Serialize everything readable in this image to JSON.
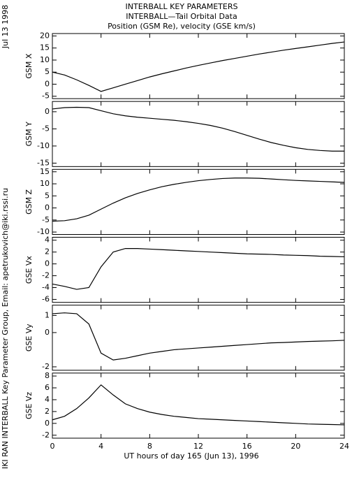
{
  "header": {
    "lines": [
      "INTERBALL KEY PARAMETERS",
      "INTERBALL—Tail Orbital Data",
      "Position (GSM Re), velocity (GSE km/s)"
    ]
  },
  "date": "Jul 13 1998",
  "credit": "IKI RAN INTERBALL Key Parameter Group, Email: apetrukovich@iki.rssi.ru",
  "chart_data": [
    {
      "type": "line",
      "ylabel": "GSM X",
      "color": "#000000",
      "x": [
        0,
        1,
        2,
        3,
        4,
        5,
        6,
        7,
        8,
        9,
        10,
        11,
        12,
        13,
        14,
        15,
        16,
        17,
        18,
        19,
        20,
        21,
        22,
        23,
        24
      ],
      "values": [
        5,
        3.8,
        1.8,
        -0.5,
        -3,
        -1.5,
        0,
        1.5,
        3,
        4.3,
        5.5,
        6.7,
        7.8,
        8.8,
        9.8,
        10.7,
        11.6,
        12.5,
        13.3,
        14.1,
        14.8,
        15.5,
        16.2,
        16.9,
        17.5
      ],
      "xlim": [
        0,
        24
      ],
      "xticks": [
        0,
        4,
        8,
        12,
        16,
        20,
        24
      ],
      "ylim": [
        -6,
        21
      ],
      "yticks": [
        -5,
        0,
        5,
        10,
        15,
        20
      ]
    },
    {
      "type": "line",
      "ylabel": "GSM Y",
      "color": "#000000",
      "x": [
        0,
        1,
        2,
        3,
        4,
        5,
        6,
        7,
        8,
        9,
        10,
        11,
        12,
        13,
        14,
        15,
        16,
        17,
        18,
        19,
        20,
        21,
        22,
        23,
        24
      ],
      "values": [
        0.8,
        1.2,
        1.3,
        1.2,
        0.3,
        -0.6,
        -1.2,
        -1.6,
        -1.9,
        -2.2,
        -2.5,
        -2.9,
        -3.4,
        -4,
        -4.8,
        -5.8,
        -6.9,
        -8,
        -9,
        -9.8,
        -10.5,
        -11,
        -11.3,
        -11.5,
        -11.5
      ],
      "xlim": [
        0,
        24
      ],
      "xticks": [
        0,
        4,
        8,
        12,
        16,
        20,
        24
      ],
      "ylim": [
        -16,
        3
      ],
      "yticks": [
        -15,
        -10,
        -5,
        0
      ]
    },
    {
      "type": "line",
      "ylabel": "GSM Z",
      "color": "#000000",
      "x": [
        0,
        1,
        2,
        3,
        4,
        5,
        6,
        7,
        8,
        9,
        10,
        11,
        12,
        13,
        14,
        15,
        16,
        17,
        18,
        19,
        20,
        21,
        22,
        23,
        24
      ],
      "values": [
        -5.5,
        -5.3,
        -4.5,
        -3,
        -0.5,
        2,
        4.2,
        6,
        7.5,
        8.8,
        9.8,
        10.6,
        11.3,
        11.8,
        12.2,
        12.4,
        12.4,
        12.3,
        12,
        11.7,
        11.4,
        11.2,
        11,
        10.8,
        10.6
      ],
      "xlim": [
        0,
        24
      ],
      "xticks": [
        0,
        4,
        8,
        12,
        16,
        20,
        24
      ],
      "ylim": [
        -11,
        16
      ],
      "yticks": [
        -10,
        -5,
        0,
        5,
        10,
        15
      ]
    },
    {
      "type": "line",
      "ylabel": "GSE Vx",
      "color": "#000000",
      "x": [
        0,
        1,
        2,
        3,
        4,
        5,
        6,
        7,
        8,
        9,
        10,
        11,
        12,
        13,
        14,
        15,
        16,
        17,
        18,
        19,
        20,
        21,
        22,
        23,
        24
      ],
      "values": [
        -3.4,
        -3.8,
        -4.3,
        -4,
        -0.5,
        2,
        2.6,
        2.6,
        2.5,
        2.4,
        2.3,
        2.2,
        2.1,
        2,
        1.9,
        1.8,
        1.7,
        1.65,
        1.6,
        1.5,
        1.45,
        1.4,
        1.3,
        1.25,
        1.2
      ],
      "xlim": [
        0,
        24
      ],
      "xticks": [
        0,
        4,
        8,
        12,
        16,
        20,
        24
      ],
      "ylim": [
        -6.5,
        4.5
      ],
      "yticks": [
        -6,
        -4,
        -2,
        0,
        2,
        4
      ]
    },
    {
      "type": "line",
      "ylabel": "GSE Vy",
      "color": "#000000",
      "x": [
        0,
        1,
        2,
        3,
        4,
        5,
        6,
        7,
        8,
        9,
        10,
        11,
        12,
        13,
        14,
        15,
        16,
        17,
        18,
        19,
        20,
        21,
        22,
        23,
        24
      ],
      "values": [
        1.1,
        1.15,
        1.1,
        0.5,
        -1.2,
        -1.6,
        -1.5,
        -1.35,
        -1.2,
        -1.1,
        -1,
        -0.95,
        -0.9,
        -0.85,
        -0.8,
        -0.75,
        -0.7,
        -0.65,
        -0.6,
        -0.58,
        -0.55,
        -0.52,
        -0.5,
        -0.48,
        -0.45
      ],
      "xlim": [
        0,
        24
      ],
      "xticks": [
        0,
        4,
        8,
        12,
        16,
        20,
        24
      ],
      "ylim": [
        -2.2,
        1.6
      ],
      "yticks": [
        -2,
        0,
        1
      ]
    },
    {
      "type": "line",
      "ylabel": "GSE Vz",
      "color": "#000000",
      "x": [
        0,
        1,
        2,
        3,
        4,
        5,
        6,
        7,
        8,
        9,
        10,
        11,
        12,
        13,
        14,
        15,
        16,
        17,
        18,
        19,
        20,
        21,
        22,
        23,
        24
      ],
      "values": [
        0.6,
        1.2,
        2.5,
        4.3,
        6.5,
        4.8,
        3.3,
        2.5,
        1.9,
        1.5,
        1.2,
        1,
        0.8,
        0.7,
        0.6,
        0.5,
        0.4,
        0.3,
        0.2,
        0.1,
        0,
        -0.1,
        -0.15,
        -0.2,
        -0.25
      ],
      "xlim": [
        0,
        24
      ],
      "xticks": [
        0,
        4,
        8,
        12,
        16,
        20,
        24
      ],
      "ylim": [
        -2.5,
        8.5
      ],
      "yticks": [
        -2,
        0,
        2,
        4,
        6,
        8
      ],
      "xlabel": "UT hours of day 165 (Jun 13), 1996"
    }
  ]
}
